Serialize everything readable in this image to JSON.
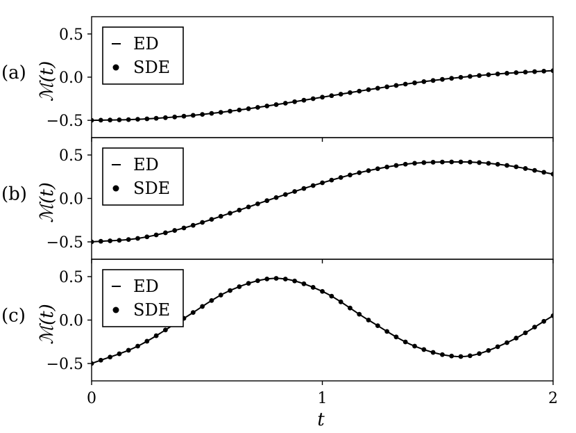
{
  "chart_data": [
    {
      "type": "line",
      "panel": "(a)",
      "ylabel": "ℳ(t)",
      "ylim": [
        -0.7,
        0.7
      ],
      "yticks": [
        "0.5",
        "0.0",
        "−0.5"
      ],
      "xlim": [
        0,
        2
      ],
      "legend": {
        "placement": "top-left",
        "entries": [
          "ED",
          "SDE"
        ]
      },
      "series": [
        {
          "name": "ED",
          "style": "line",
          "color": "#000000",
          "x": [
            0,
            0.2,
            0.4,
            0.6,
            0.8,
            1.0,
            1.2,
            1.4,
            1.6,
            1.8,
            2.0
          ],
          "y": [
            -0.5,
            -0.488,
            -0.452,
            -0.394,
            -0.318,
            -0.232,
            -0.145,
            -0.066,
            -0.002,
            0.045,
            0.075
          ]
        },
        {
          "name": "SDE",
          "style": "markers",
          "color": "#000000",
          "x": [
            0,
            0.2,
            0.4,
            0.6,
            0.8,
            1.0,
            1.2,
            1.4,
            1.6,
            1.8,
            2.0
          ],
          "y": [
            -0.5,
            -0.488,
            -0.452,
            -0.394,
            -0.318,
            -0.232,
            -0.145,
            -0.066,
            -0.002,
            0.045,
            0.075
          ]
        }
      ]
    },
    {
      "type": "line",
      "panel": "(b)",
      "ylabel": "ℳ(t)",
      "ylim": [
        -0.7,
        0.7
      ],
      "yticks": [
        "0.5",
        "0.0",
        "−0.5"
      ],
      "xlim": [
        0,
        2
      ],
      "legend": {
        "placement": "top-left",
        "entries": [
          "ED",
          "SDE"
        ]
      },
      "series": [
        {
          "name": "ED",
          "style": "line",
          "color": "#000000",
          "x": [
            0,
            0.2,
            0.4,
            0.6,
            0.8,
            1.0,
            1.2,
            1.4,
            1.6,
            1.8,
            2.0
          ],
          "y": [
            -0.5,
            -0.46,
            -0.34,
            -0.17,
            0.01,
            0.18,
            0.32,
            0.405,
            0.42,
            0.38,
            0.28
          ]
        },
        {
          "name": "SDE",
          "style": "markers",
          "color": "#000000",
          "x": [
            0,
            0.2,
            0.4,
            0.6,
            0.8,
            1.0,
            1.2,
            1.4,
            1.6,
            1.8,
            2.0
          ],
          "y": [
            -0.5,
            -0.46,
            -0.34,
            -0.17,
            0.01,
            0.18,
            0.32,
            0.405,
            0.42,
            0.38,
            0.28
          ]
        }
      ]
    },
    {
      "type": "line",
      "panel": "(c)",
      "ylabel": "ℳ(t)",
      "xlabel": "t",
      "ylim": [
        -0.7,
        0.7
      ],
      "yticks": [
        "0.5",
        "0.0",
        "−0.5"
      ],
      "xlim": [
        0,
        2
      ],
      "xticks": [
        "0",
        "1",
        "2"
      ],
      "legend": {
        "placement": "top-left",
        "entries": [
          "ED",
          "SDE"
        ]
      },
      "series": [
        {
          "name": "ED",
          "style": "line",
          "color": "#000000",
          "x": [
            0,
            0.2,
            0.4,
            0.6,
            0.8,
            1.0,
            1.2,
            1.4,
            1.6,
            1.8,
            2.0
          ],
          "y": [
            -0.5,
            -0.3,
            0.02,
            0.34,
            0.48,
            0.33,
            0.0,
            -0.3,
            -0.42,
            -0.26,
            0.05
          ]
        },
        {
          "name": "SDE",
          "style": "markers",
          "color": "#000000",
          "x": [
            0,
            0.2,
            0.4,
            0.6,
            0.8,
            1.0,
            1.2,
            1.4,
            1.6,
            1.8,
            2.0
          ],
          "y": [
            -0.5,
            -0.3,
            0.02,
            0.34,
            0.48,
            0.33,
            0.0,
            -0.3,
            -0.42,
            -0.26,
            0.05
          ]
        }
      ]
    }
  ]
}
